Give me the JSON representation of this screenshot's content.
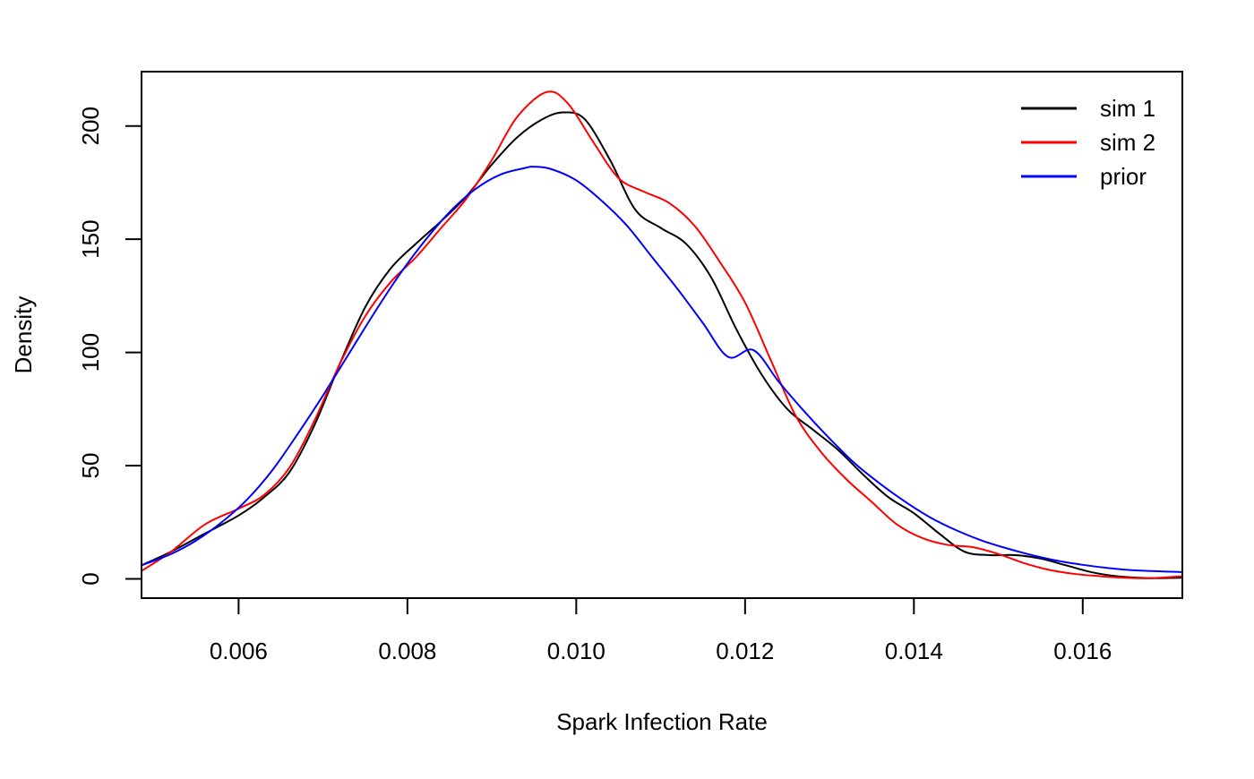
{
  "chart_data": {
    "type": "line",
    "title": "",
    "xlabel": "Spark Infection Rate",
    "ylabel": "Density",
    "xlim": [
      0.00485,
      0.01718
    ],
    "ylim": [
      -8.5,
      224
    ],
    "x_ticks": [
      0.006,
      0.008,
      0.01,
      0.012,
      0.014,
      0.016
    ],
    "x_tick_labels": [
      "0.006",
      "0.008",
      "0.010",
      "0.012",
      "0.014",
      "0.016"
    ],
    "y_ticks": [
      0,
      50,
      100,
      150,
      200
    ],
    "y_tick_labels": [
      "0",
      "50",
      "100",
      "150",
      "200"
    ],
    "grid": false,
    "legend_position": "top-right",
    "series": [
      {
        "name": "sim 1",
        "color": "#000000",
        "points": [
          [
            0.00485,
            6
          ],
          [
            0.0052,
            12
          ],
          [
            0.0056,
            20
          ],
          [
            0.006,
            28
          ],
          [
            0.0063,
            36
          ],
          [
            0.0066,
            47
          ],
          [
            0.0069,
            68
          ],
          [
            0.0072,
            95
          ],
          [
            0.0075,
            120
          ],
          [
            0.0078,
            137
          ],
          [
            0.0081,
            148
          ],
          [
            0.0084,
            158
          ],
          [
            0.0087,
            169
          ],
          [
            0.009,
            183
          ],
          [
            0.0093,
            195
          ],
          [
            0.0096,
            203
          ],
          [
            0.00985,
            206
          ],
          [
            0.0101,
            203
          ],
          [
            0.0104,
            185
          ],
          [
            0.0107,
            163
          ],
          [
            0.011,
            155
          ],
          [
            0.0113,
            148
          ],
          [
            0.0116,
            133
          ],
          [
            0.0119,
            110
          ],
          [
            0.0122,
            90
          ],
          [
            0.0125,
            75
          ],
          [
            0.0128,
            66
          ],
          [
            0.0131,
            57
          ],
          [
            0.0134,
            46
          ],
          [
            0.0137,
            36
          ],
          [
            0.014,
            29
          ],
          [
            0.0143,
            20
          ],
          [
            0.0146,
            12
          ],
          [
            0.0149,
            10.5
          ],
          [
            0.0152,
            10.5
          ],
          [
            0.0155,
            9
          ],
          [
            0.0158,
            6
          ],
          [
            0.0161,
            3
          ],
          [
            0.0164,
            1.2
          ],
          [
            0.0168,
            0.3
          ],
          [
            0.01718,
            0.5
          ]
        ]
      },
      {
        "name": "sim 2",
        "color": "#ff0000",
        "points": [
          [
            0.00485,
            3.5
          ],
          [
            0.0052,
            12
          ],
          [
            0.0056,
            24
          ],
          [
            0.006,
            31
          ],
          [
            0.0063,
            37
          ],
          [
            0.0066,
            49
          ],
          [
            0.0069,
            70
          ],
          [
            0.0072,
            95
          ],
          [
            0.0075,
            116
          ],
          [
            0.0078,
            131
          ],
          [
            0.0081,
            142
          ],
          [
            0.0084,
            155
          ],
          [
            0.0087,
            168
          ],
          [
            0.009,
            185
          ],
          [
            0.0093,
            204
          ],
          [
            0.00965,
            215
          ],
          [
            0.0099,
            210
          ],
          [
            0.0102,
            193
          ],
          [
            0.0105,
            177
          ],
          [
            0.0108,
            171
          ],
          [
            0.0111,
            166
          ],
          [
            0.0114,
            156
          ],
          [
            0.0117,
            140
          ],
          [
            0.012,
            122
          ],
          [
            0.0123,
            97
          ],
          [
            0.0126,
            72
          ],
          [
            0.0129,
            56
          ],
          [
            0.0132,
            44
          ],
          [
            0.0135,
            34
          ],
          [
            0.0138,
            24
          ],
          [
            0.0141,
            18
          ],
          [
            0.0144,
            15
          ],
          [
            0.0147,
            14
          ],
          [
            0.015,
            11
          ],
          [
            0.0153,
            7
          ],
          [
            0.0156,
            4
          ],
          [
            0.0159,
            2.2
          ],
          [
            0.0162,
            1.2
          ],
          [
            0.0165,
            0.5
          ],
          [
            0.0168,
            0.3
          ],
          [
            0.01718,
            1.2
          ]
        ]
      },
      {
        "name": "prior",
        "color": "#0000ff",
        "points": [
          [
            0.00485,
            6
          ],
          [
            0.0052,
            11
          ],
          [
            0.0055,
            17
          ],
          [
            0.0058,
            25
          ],
          [
            0.0061,
            35
          ],
          [
            0.0064,
            48
          ],
          [
            0.0067,
            64
          ],
          [
            0.007,
            81
          ],
          [
            0.0073,
            99
          ],
          [
            0.0076,
            117
          ],
          [
            0.0079,
            134
          ],
          [
            0.0082,
            149
          ],
          [
            0.0085,
            162
          ],
          [
            0.0088,
            172
          ],
          [
            0.0091,
            178.5
          ],
          [
            0.0094,
            181.5
          ],
          [
            0.0095,
            182
          ],
          [
            0.0097,
            181
          ],
          [
            0.01,
            176
          ],
          [
            0.0103,
            167
          ],
          [
            0.0106,
            156
          ],
          [
            0.0109,
            142
          ],
          [
            0.0112,
            128
          ],
          [
            0.0115,
            113
          ],
          [
            0.0118,
            98
          ],
          [
            0.0121,
            101
          ],
          [
            0.0124,
            87
          ],
          [
            0.0127,
            74
          ],
          [
            0.013,
            62
          ],
          [
            0.0133,
            51
          ],
          [
            0.0136,
            42
          ],
          [
            0.0139,
            34
          ],
          [
            0.0142,
            27
          ],
          [
            0.0145,
            21.5
          ],
          [
            0.0148,
            17
          ],
          [
            0.0151,
            13.5
          ],
          [
            0.0154,
            10.5
          ],
          [
            0.0157,
            8
          ],
          [
            0.016,
            6.2
          ],
          [
            0.0163,
            4.8
          ],
          [
            0.0166,
            3.8
          ],
          [
            0.01718,
            3
          ]
        ]
      }
    ]
  }
}
